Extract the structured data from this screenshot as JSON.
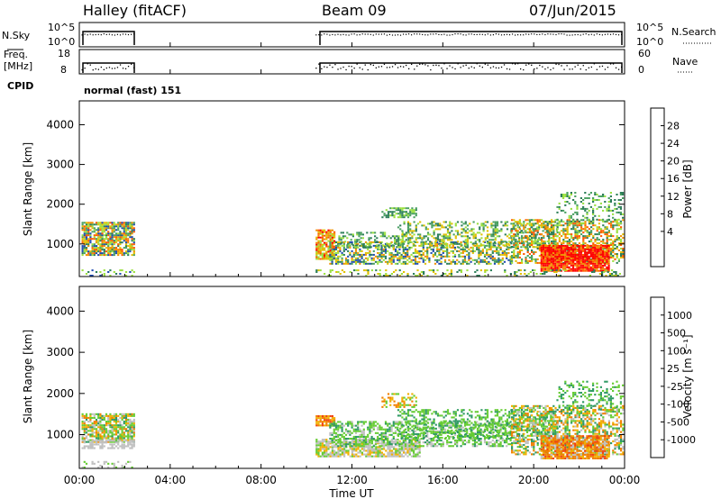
{
  "header": {
    "station": "Halley (fitACF)",
    "beam": "Beam 09",
    "date": "07/Jun/2015"
  },
  "sidepanels": {
    "nsky_label": "N.Sky",
    "nsky_ticks": [
      "10^5",
      "10^0"
    ],
    "nsearch_label": "N.Search",
    "nsearch_ticks": [
      "10^5",
      "10^0"
    ],
    "freq_label_line1": "Freq.",
    "freq_label_line2": "[MHz]",
    "freq_ticks": [
      "18",
      "8"
    ],
    "nave_label": "Nave",
    "nave_ticks": [
      "60",
      "0"
    ],
    "cpid_label": "CPID",
    "cpid_value": "normal (fast) 151"
  },
  "time_axis": {
    "label": "Time UT",
    "ticks": [
      "00:00",
      "04:00",
      "08:00",
      "12:00",
      "16:00",
      "20:00",
      "00:00"
    ]
  },
  "chart_data": [
    {
      "type": "heatmap",
      "name": "power",
      "ylabel": "Slant Range [km]",
      "yticks": [
        "4000",
        "3000",
        "2000",
        "1000"
      ],
      "ylim": [
        180,
        4600
      ],
      "xlim_hours": [
        0,
        24
      ],
      "colorbar": {
        "label": "Power [dB]",
        "ticks": [
          "28",
          "24",
          "20",
          "16",
          "12",
          "8",
          "4"
        ],
        "colors": [
          "#ff0000",
          "#ff5a00",
          "#f09000",
          "#e0c000",
          "#9be040",
          "#4aa060",
          "#2c7e58",
          "#1e4bb0",
          "#0000f0"
        ]
      },
      "data_spans_hours": [
        [
          0.1,
          2.4
        ],
        [
          10.4,
          23.9
        ]
      ]
    },
    {
      "type": "heatmap",
      "name": "velocity",
      "ylabel": "Slant Range [km]",
      "yticks": [
        "4000",
        "3000",
        "2000",
        "1000"
      ],
      "ylim": [
        180,
        4600
      ],
      "xlim_hours": [
        0,
        24
      ],
      "colorbar": {
        "label": "Velocity [m s⁻¹]",
        "ticks": [
          "1000",
          "500",
          "100",
          "25",
          "-25",
          "-100",
          "-500",
          "-1000"
        ],
        "colors": [
          "#1e3cc8",
          "#1e6eb4",
          "#2f9a64",
          "#66cc33",
          "#c0c0c0",
          "#f0b000",
          "#f08000",
          "#f04010",
          "#ff0000"
        ]
      },
      "data_spans_hours": [
        [
          0.1,
          2.4
        ],
        [
          10.4,
          23.9
        ]
      ]
    }
  ]
}
